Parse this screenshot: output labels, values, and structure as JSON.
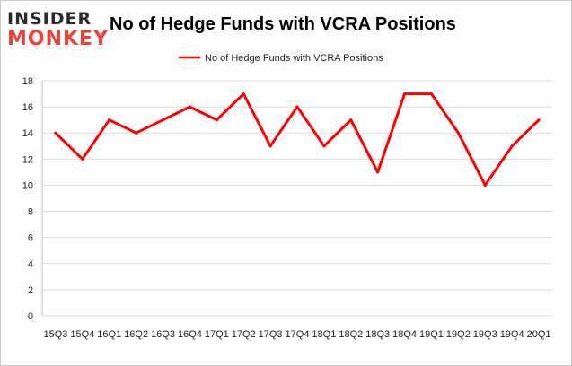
{
  "logo": {
    "line1": "INSIDER",
    "line2": "MONKEY",
    "color_line1": "#2b2b2b",
    "color_line2": "#e8443a"
  },
  "colors": {
    "series": "#ff0000",
    "grid": "#d9d9d9",
    "border": "#cccccc"
  },
  "chart_data": {
    "type": "line",
    "title": "No of Hedge Funds with VCRA Positions",
    "xlabel": "",
    "ylabel": "",
    "ylim": [
      0,
      18
    ],
    "yticks": [
      0,
      2,
      4,
      6,
      8,
      10,
      12,
      14,
      16,
      18
    ],
    "grid": true,
    "legend_position": "top-center",
    "categories": [
      "15Q3",
      "15Q4",
      "16Q1",
      "16Q2",
      "16Q3",
      "16Q4",
      "17Q1",
      "17Q2",
      "17Q3",
      "17Q4",
      "18Q1",
      "18Q2",
      "18Q3",
      "18Q4",
      "19Q1",
      "19Q2",
      "19Q3",
      "19Q4",
      "20Q1"
    ],
    "series": [
      {
        "name": "No of Hedge Funds with VCRA Positions",
        "values": [
          14,
          12,
          15,
          14,
          15,
          16,
          15,
          17,
          13,
          16,
          13,
          15,
          11,
          17,
          17,
          14,
          10,
          13,
          15
        ]
      }
    ]
  }
}
